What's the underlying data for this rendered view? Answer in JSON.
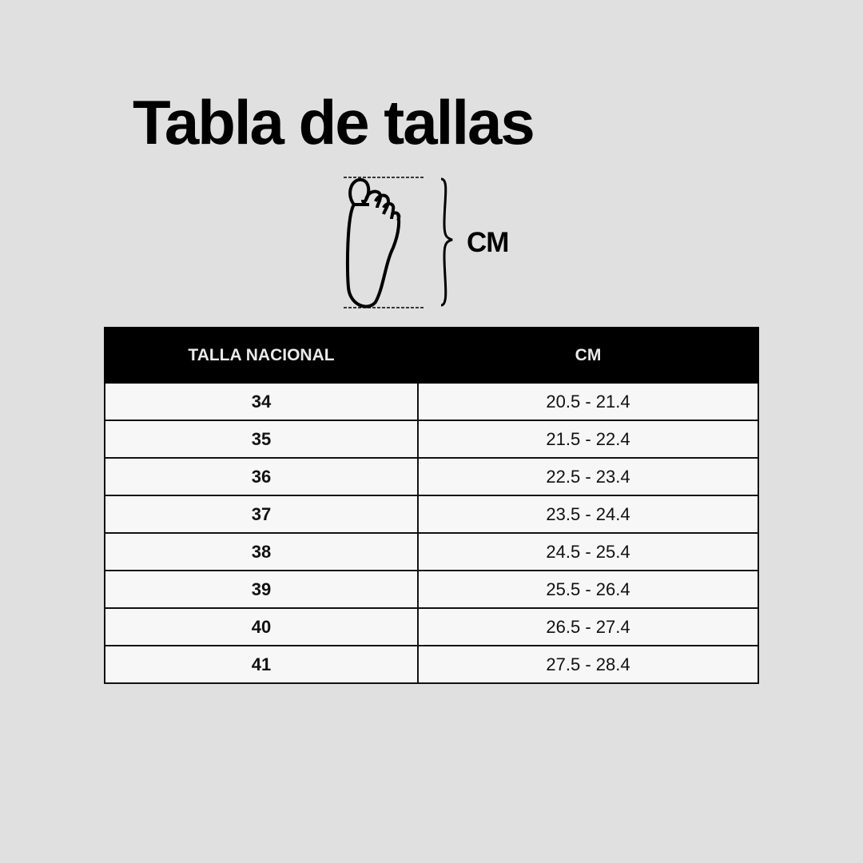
{
  "title": "Tabla de tallas",
  "diagram": {
    "icon": "foot-length-icon",
    "label": "CM"
  },
  "table": {
    "headers": [
      "TALLA NACIONAL",
      "CM"
    ],
    "rows": [
      {
        "size": "34",
        "cm": "20.5 - 21.4"
      },
      {
        "size": "35",
        "cm": "21.5 - 22.4"
      },
      {
        "size": "36",
        "cm": "22.5 - 23.4"
      },
      {
        "size": "37",
        "cm": "23.5 - 24.4"
      },
      {
        "size": "38",
        "cm": "24.5 - 25.4"
      },
      {
        "size": "39",
        "cm": "25.5 - 26.4"
      },
      {
        "size": "40",
        "cm": "26.5 - 27.4"
      },
      {
        "size": "41",
        "cm": "27.5 - 28.4"
      }
    ]
  },
  "colors": {
    "background": "#e0e0e0",
    "header": "#000000",
    "cell": "#f8f7f8"
  }
}
